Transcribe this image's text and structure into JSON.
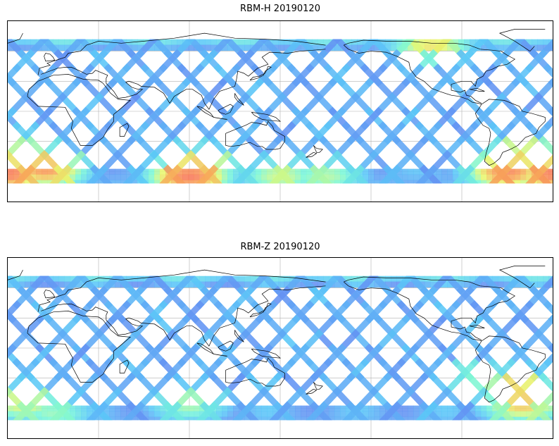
{
  "maps": [
    {
      "title": "RBM-H 20190120",
      "hot_regions": [
        {
          "lon": 90,
          "lat": -65,
          "level": 0.95
        },
        {
          "lon": 95,
          "lat": -55,
          "level": 0.75
        },
        {
          "lon": -60,
          "lat": -60,
          "level": 0.9
        },
        {
          "lon": -30,
          "lat": -62,
          "level": 0.95
        },
        {
          "lon": -5,
          "lat": -58,
          "level": 0.85
        },
        {
          "lon": -50,
          "lat": -45,
          "level": 0.7
        },
        {
          "lon": -110,
          "lat": 65,
          "level": 0.65
        },
        {
          "lon": -20,
          "lat": -40,
          "level": 0.55
        },
        {
          "lon": 150,
          "lat": -65,
          "level": 0.55
        },
        {
          "lon": 180,
          "lat": -65,
          "level": 0.5
        }
      ]
    },
    {
      "title": "RBM-Z 20190120",
      "hot_regions": [
        {
          "lon": -50,
          "lat": -55,
          "level": 0.75
        },
        {
          "lon": -55,
          "lat": -40,
          "level": 0.7
        },
        {
          "lon": -20,
          "lat": -55,
          "level": 0.6
        },
        {
          "lon": 90,
          "lat": -55,
          "level": 0.5
        },
        {
          "lon": -80,
          "lat": -30,
          "level": 0.45
        },
        {
          "lon": 0,
          "lat": -65,
          "level": 0.45
        }
      ]
    }
  ],
  "colors": {
    "low": "#6a6cf0",
    "mid": "#5bc8f8",
    "cyan": "#7af7d8",
    "yellow": "#e8f870",
    "orange": "#f8a85a",
    "high": "#f86a5a",
    "coast": "#000000",
    "grid": "#b0b0b0"
  }
}
